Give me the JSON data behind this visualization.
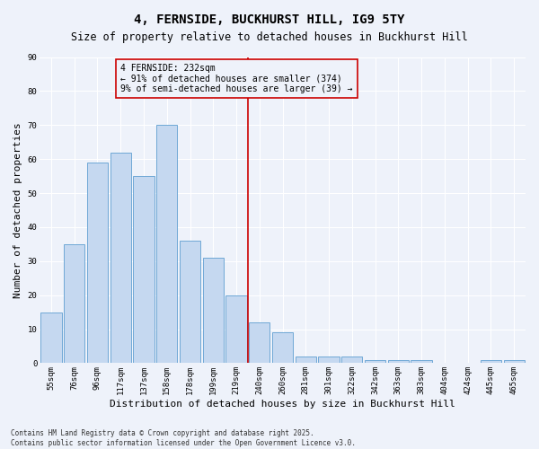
{
  "title": "4, FERNSIDE, BUCKHURST HILL, IG9 5TY",
  "subtitle": "Size of property relative to detached houses in Buckhurst Hill",
  "xlabel": "Distribution of detached houses by size in Buckhurst Hill",
  "ylabel": "Number of detached properties",
  "categories": [
    "55sqm",
    "76sqm",
    "96sqm",
    "117sqm",
    "137sqm",
    "158sqm",
    "178sqm",
    "199sqm",
    "219sqm",
    "240sqm",
    "260sqm",
    "281sqm",
    "301sqm",
    "322sqm",
    "342sqm",
    "363sqm",
    "383sqm",
    "404sqm",
    "424sqm",
    "445sqm",
    "465sqm"
  ],
  "values": [
    15,
    35,
    59,
    62,
    55,
    70,
    36,
    31,
    20,
    12,
    9,
    2,
    2,
    2,
    1,
    1,
    1,
    0,
    0,
    1,
    1
  ],
  "bar_color": "#c5d8f0",
  "bar_edge_color": "#6fa8d6",
  "vline_index": 8.5,
  "vline_color": "#cc0000",
  "annotation_line1": "4 FERNSIDE: 232sqm",
  "annotation_line2": "← 91% of detached houses are smaller (374)",
  "annotation_line3": "9% of semi-detached houses are larger (39) →",
  "annotation_box_color": "#cc0000",
  "ylim": [
    0,
    90
  ],
  "yticks": [
    0,
    10,
    20,
    30,
    40,
    50,
    60,
    70,
    80,
    90
  ],
  "background_color": "#eef2fa",
  "grid_color": "#ffffff",
  "footnote": "Contains HM Land Registry data © Crown copyright and database right 2025.\nContains public sector information licensed under the Open Government Licence v3.0.",
  "title_fontsize": 10,
  "subtitle_fontsize": 8.5,
  "xlabel_fontsize": 8,
  "ylabel_fontsize": 8,
  "tick_fontsize": 6.5,
  "annotation_fontsize": 7,
  "footnote_fontsize": 5.5
}
